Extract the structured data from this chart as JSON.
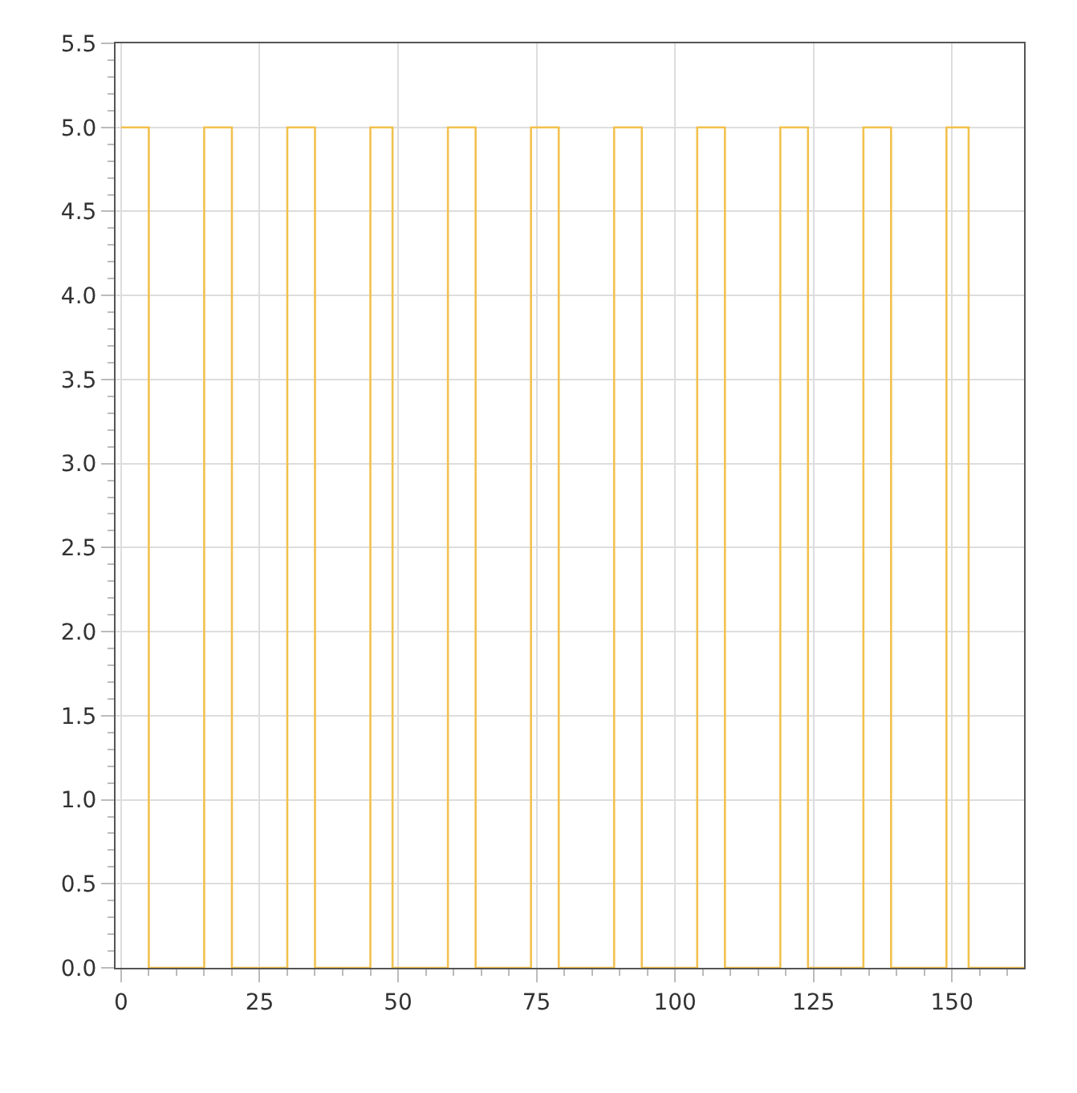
{
  "chart_data": {
    "type": "step",
    "x": [
      0,
      5,
      15,
      20,
      30,
      35,
      45,
      49,
      59,
      64,
      74,
      79,
      89,
      94,
      104,
      109,
      119,
      124,
      134,
      139,
      149,
      153,
      163
    ],
    "series": [
      {
        "color": "#f2c14e",
        "values": [
          5,
          0,
          5,
          0,
          5,
          0,
          5,
          0,
          5,
          0,
          5,
          0,
          5,
          0,
          5,
          0,
          5,
          0,
          5,
          0,
          5,
          0,
          0
        ]
      }
    ],
    "xlim": [
      -1,
      163
    ],
    "xticks": [
      0,
      25,
      50,
      75,
      100,
      125,
      150
    ],
    "ylim": [
      0,
      5.5
    ],
    "yticks": [
      {
        "value": 0,
        "label": "0.0"
      },
      {
        "value": 0.5,
        "label": "0.5"
      },
      {
        "value": 1,
        "label": "1.0"
      },
      {
        "value": 1.5,
        "label": "1.5"
      },
      {
        "value": 2,
        "label": "2.0"
      },
      {
        "value": 2.5,
        "label": "2.5"
      },
      {
        "value": 3,
        "label": "3.0"
      },
      {
        "value": 3.5,
        "label": "3.5"
      },
      {
        "value": 4,
        "label": "4.0"
      },
      {
        "value": 4.5,
        "label": "4.5"
      },
      {
        "value": 5,
        "label": "5.0"
      },
      {
        "value": 5.5,
        "label": "5.5"
      }
    ],
    "grid": true,
    "legend": false,
    "marker": "none"
  }
}
